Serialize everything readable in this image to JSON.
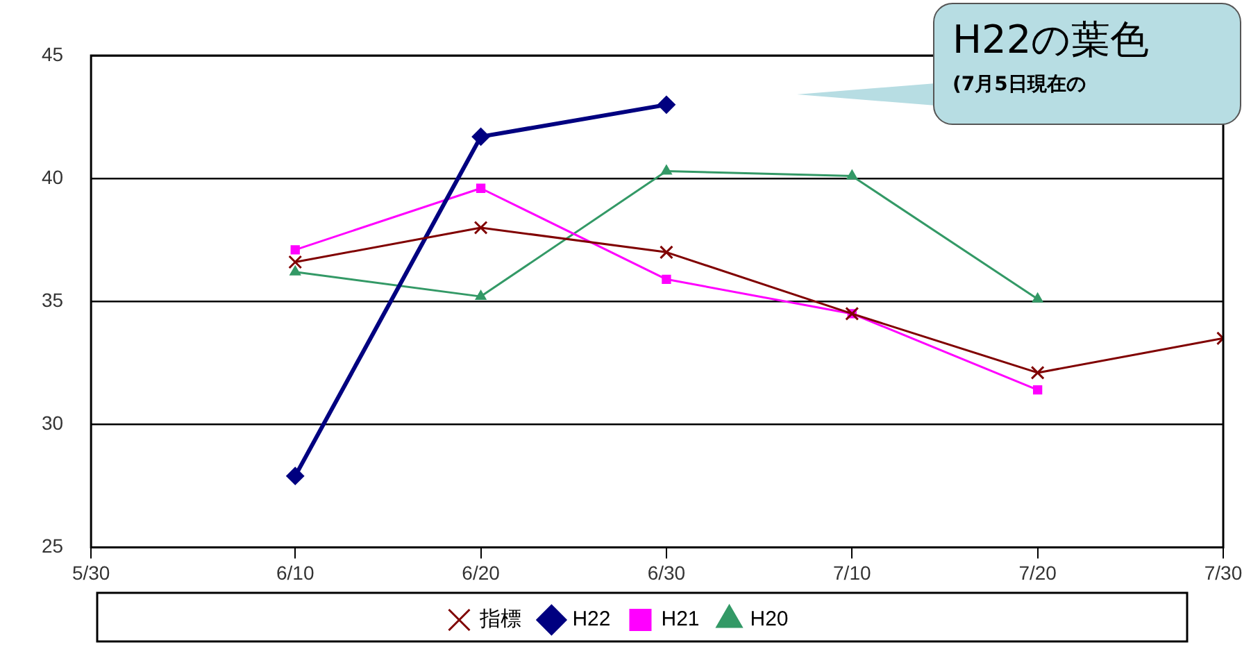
{
  "chart_data": {
    "type": "line",
    "annotations": [
      "H22の葉色",
      "(7月5日現在の"
    ],
    "x": [
      "--06-10",
      "--06-20",
      "--06-30",
      "--07-10",
      "--07-20",
      "--07-30"
    ],
    "xlim": [
      "--05-30",
      "--07-30"
    ],
    "xticks": [
      {
        "value": "--05-30",
        "label": "5/30"
      },
      {
        "value": "--06-10",
        "label": "6/10"
      },
      {
        "value": "--06-20",
        "label": "6/20"
      },
      {
        "value": "--06-30",
        "label": "6/30"
      },
      {
        "value": "--07-10",
        "label": "7/10"
      },
      {
        "value": "--07-20",
        "label": "7/20"
      },
      {
        "value": "--07-30",
        "label": "7/30"
      }
    ],
    "ylim": [
      25,
      45
    ],
    "yticks": [
      25,
      30,
      35,
      40,
      45
    ],
    "grid": "y",
    "legend": "bottom",
    "line_style": "solid",
    "series": [
      {
        "name": "H22",
        "color": "#000080",
        "marker": "diamond",
        "values": [
          27.9,
          41.7,
          43.0,
          null,
          null,
          null
        ]
      },
      {
        "name": "H21",
        "color": "#ff00ff",
        "marker": "square",
        "values": [
          37.1,
          39.6,
          35.9,
          34.5,
          31.4,
          null
        ]
      },
      {
        "name": "H20",
        "color": "#339966",
        "marker": "triangle",
        "values": [
          36.2,
          35.2,
          40.3,
          40.1,
          35.1,
          null
        ]
      },
      {
        "name": "指標",
        "color": "#800000",
        "marker": "cross",
        "values": [
          36.6,
          38.0,
          37.0,
          34.5,
          32.1,
          33.5
        ]
      }
    ]
  }
}
